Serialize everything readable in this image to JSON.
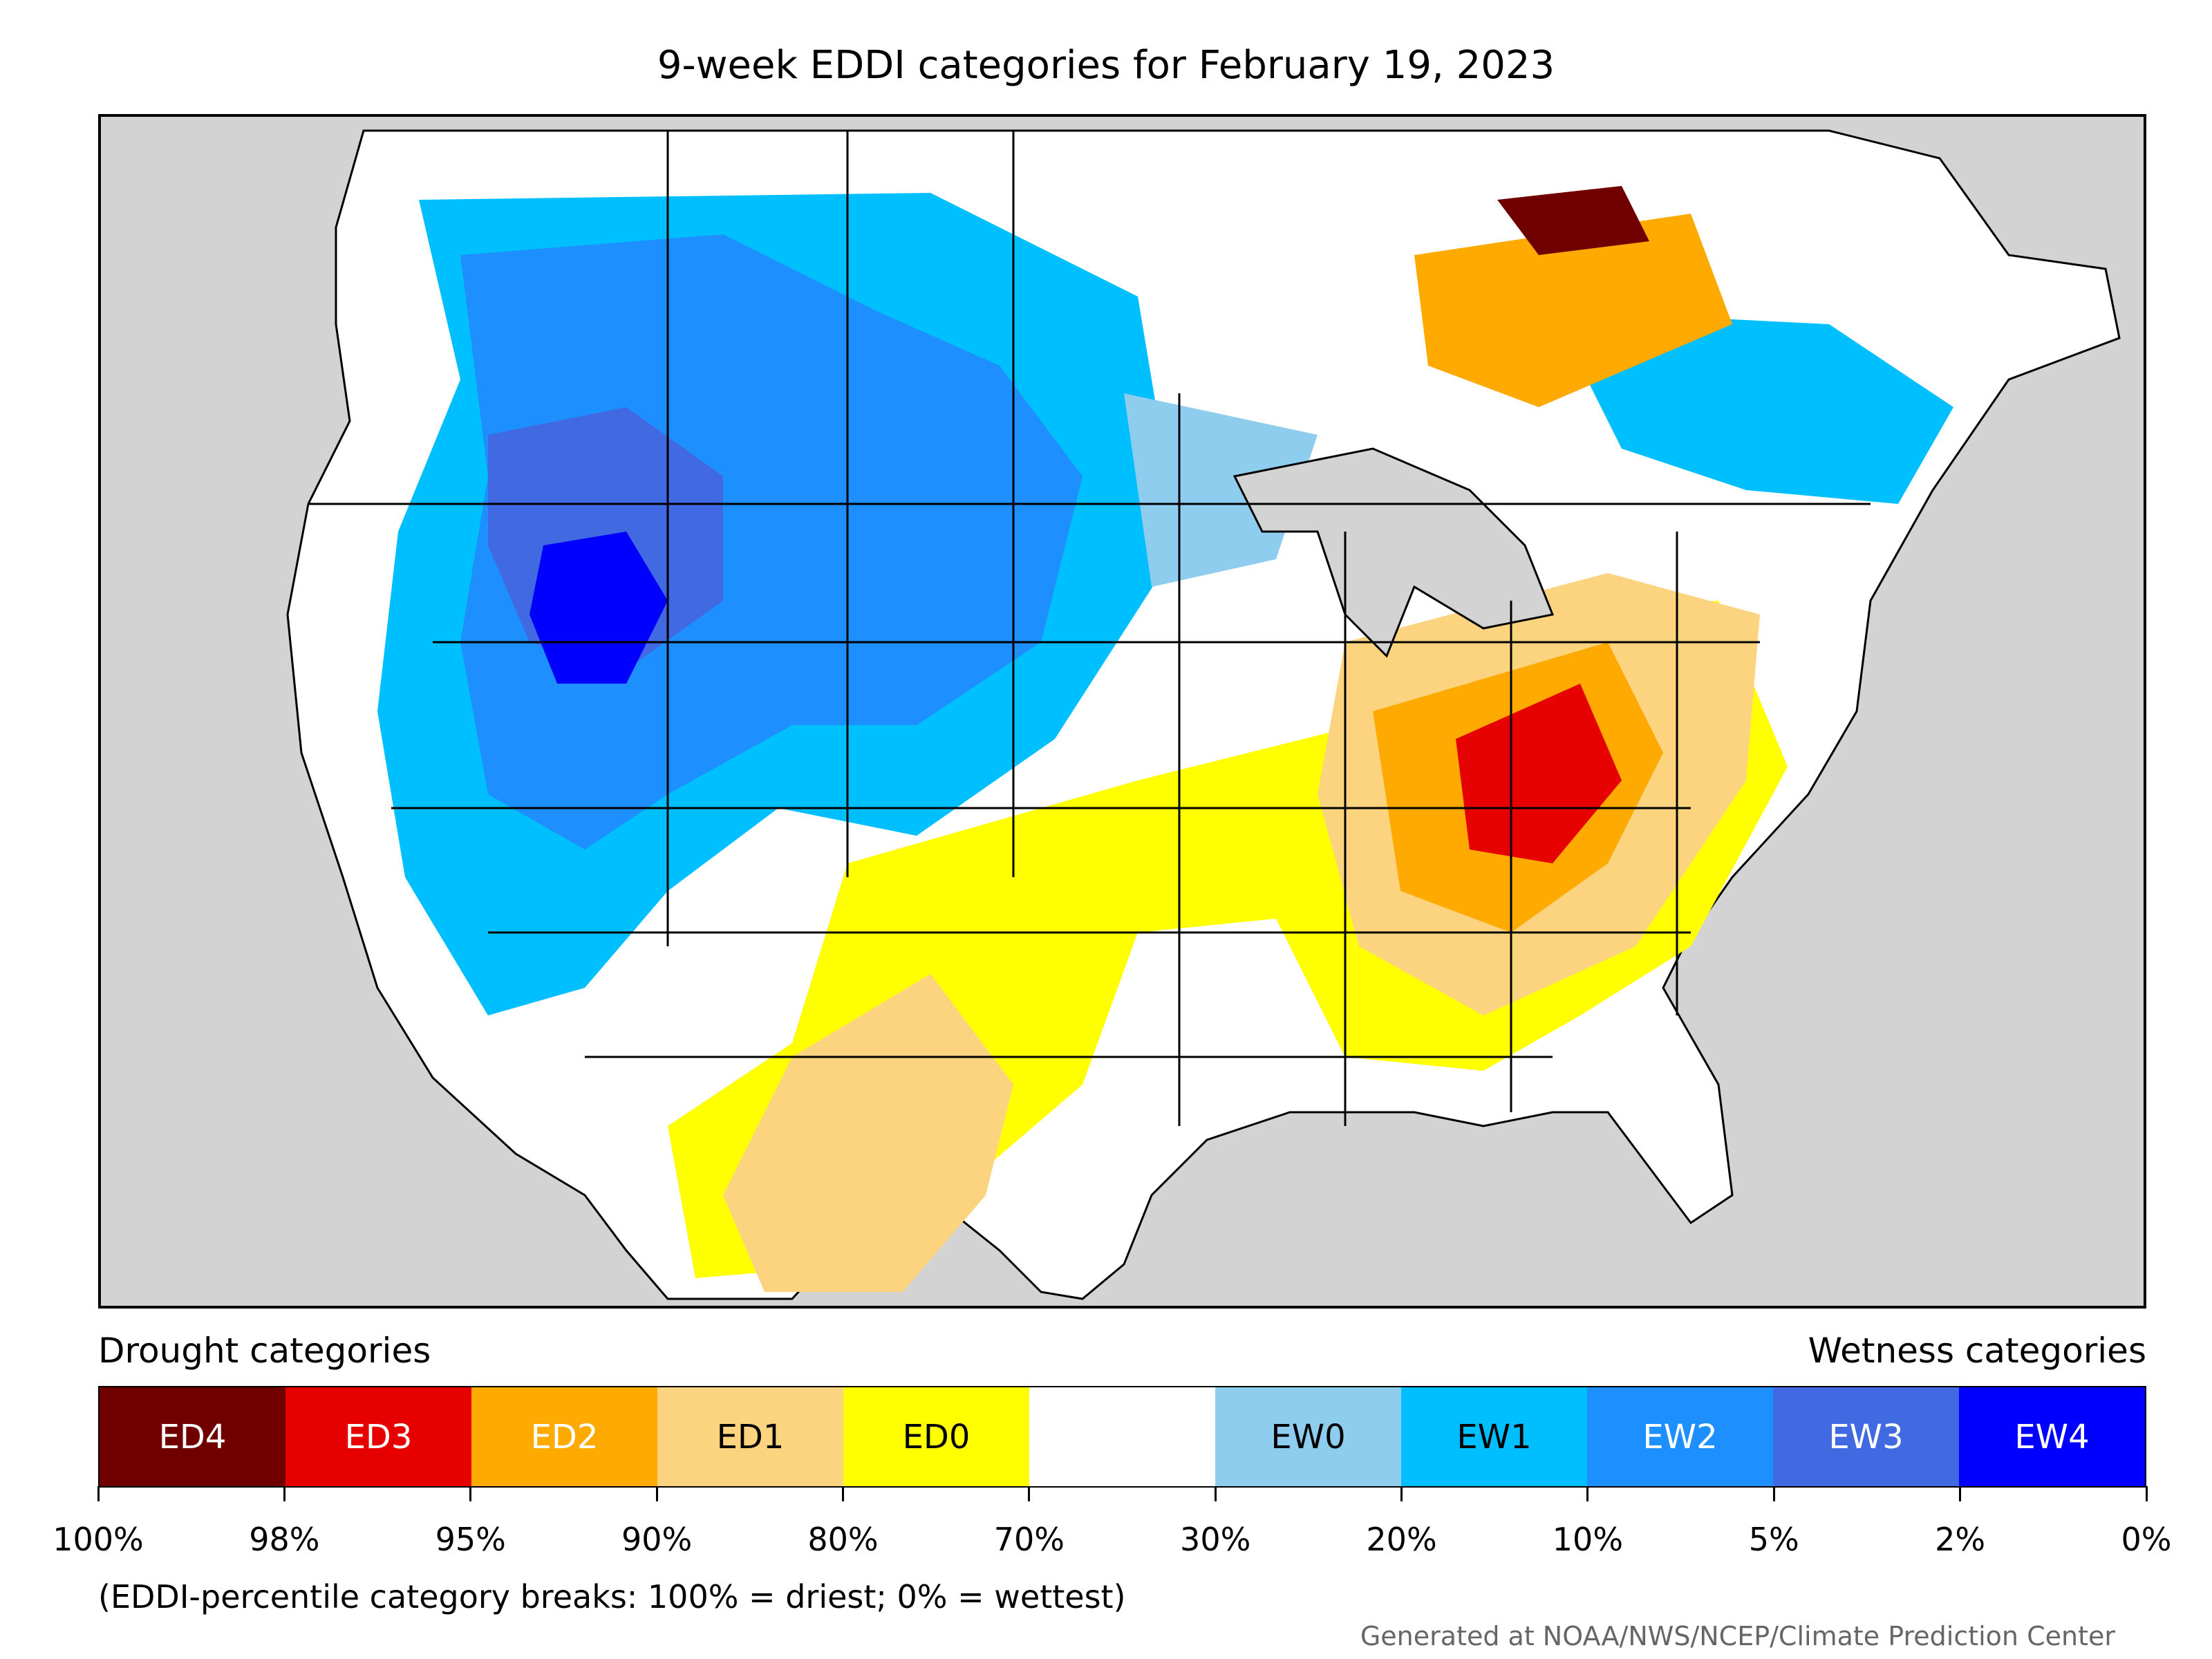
{
  "title": "9-week EDDI categories for February 19, 2023",
  "legend": {
    "drought_heading": "Drought categories",
    "wetness_heading": "Wetness categories",
    "categories": [
      {
        "label": "ED4",
        "color": "#700000",
        "text_color": "#ffffff"
      },
      {
        "label": "ED3",
        "color": "#e60000",
        "text_color": "#ffffff"
      },
      {
        "label": "ED2",
        "color": "#ffaa00",
        "text_color": "#ffffff"
      },
      {
        "label": "ED1",
        "color": "#fcd37f",
        "text_color": "#000000"
      },
      {
        "label": "ED0",
        "color": "#ffff00",
        "text_color": "#000000"
      },
      {
        "label": "",
        "color": "#ffffff",
        "text_color": "#000000"
      },
      {
        "label": "EW0",
        "color": "#8fcdef",
        "text_color": "#000000"
      },
      {
        "label": "EW1",
        "color": "#00bfff",
        "text_color": "#000000"
      },
      {
        "label": "EW2",
        "color": "#1e8fff",
        "text_color": "#ffffff"
      },
      {
        "label": "EW3",
        "color": "#4169e1",
        "text_color": "#ffffff"
      },
      {
        "label": "EW4",
        "color": "#0000ff",
        "text_color": "#ffffff"
      }
    ],
    "tick_labels": [
      "100%",
      "98%",
      "95%",
      "90%",
      "80%",
      "70%",
      "30%",
      "20%",
      "10%",
      "5%",
      "2%",
      "0%"
    ]
  },
  "footnote": "(EDDI-percentile category breaks: 100% = driest; 0% = wettest)",
  "credit": "Generated at NOAA/NWS/NCEP/Climate Prediction Center",
  "map_colors": {
    "ocean": "#d3d3d3",
    "land": "#ffffff",
    "borders": "#000000"
  }
}
